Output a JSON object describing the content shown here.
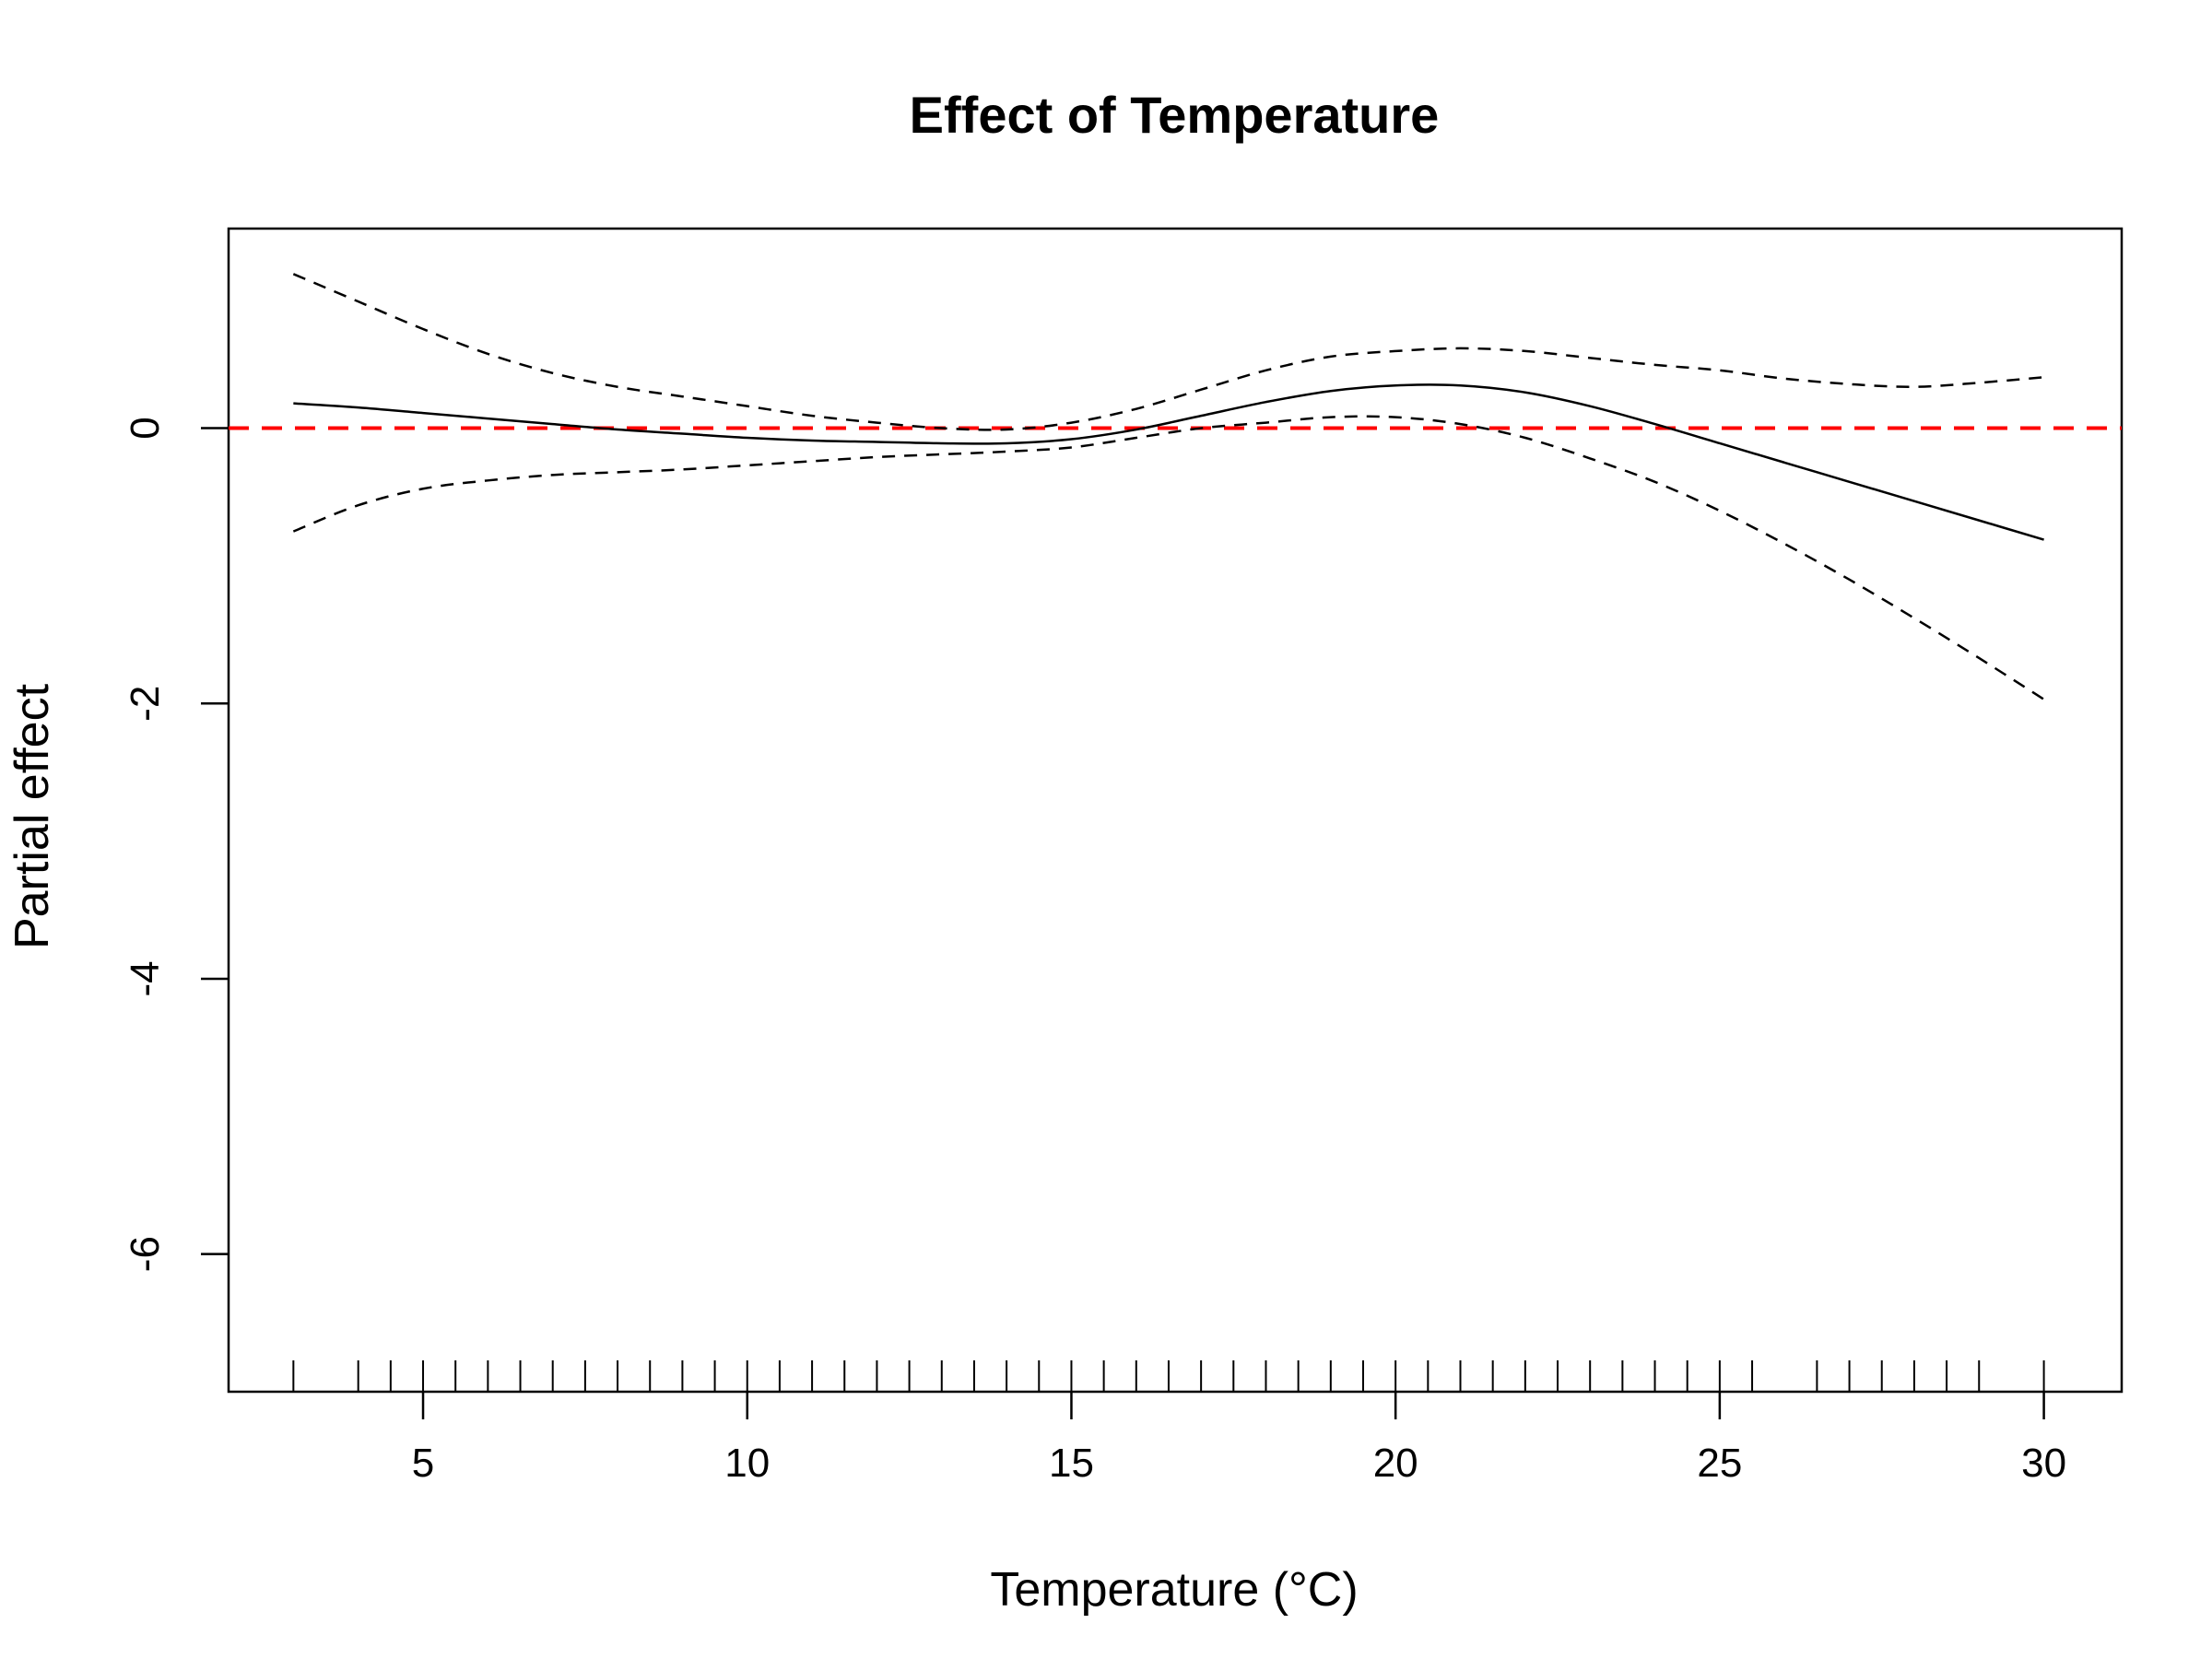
{
  "chart_data": {
    "type": "line",
    "title": "Effect of Temperature",
    "xlabel": "Temperature (°C)",
    "ylabel": "Partial effect",
    "xlim": [
      2.0,
      31.2
    ],
    "ylim": [
      -7.0,
      1.45
    ],
    "x_ticks": [
      5,
      10,
      15,
      20,
      25,
      30
    ],
    "y_ticks": [
      0,
      -2,
      -4,
      -6
    ],
    "grid": false,
    "legend": "none",
    "reference_line": {
      "y": 0,
      "style": "dashed",
      "color": "#ff0000"
    },
    "series": [
      {
        "role": "estimate",
        "style": "solid",
        "color": "#000000",
        "x": [
          3,
          4,
          5,
          6,
          7,
          8,
          9,
          10,
          11,
          12,
          13,
          14,
          15,
          16,
          17,
          18,
          19,
          20,
          21,
          22,
          23,
          24,
          25,
          26,
          27,
          28,
          29,
          30
        ],
        "y": [
          0.18,
          0.15,
          0.11,
          0.07,
          0.03,
          -0.01,
          -0.04,
          -0.07,
          -0.09,
          -0.1,
          -0.11,
          -0.11,
          -0.08,
          -0.01,
          0.09,
          0.19,
          0.27,
          0.31,
          0.31,
          0.26,
          0.16,
          0.03,
          -0.11,
          -0.25,
          -0.39,
          -0.53,
          -0.67,
          -0.81
        ]
      },
      {
        "role": "upper-confidence-band",
        "style": "dashed",
        "color": "#000000",
        "x": [
          3,
          4,
          5,
          6,
          7,
          8,
          9,
          10,
          11,
          12,
          13,
          14,
          15,
          16,
          17,
          18,
          19,
          20,
          21,
          22,
          23,
          24,
          25,
          26,
          27,
          28,
          29,
          30
        ],
        "y": [
          1.12,
          0.92,
          0.72,
          0.54,
          0.4,
          0.3,
          0.23,
          0.16,
          0.09,
          0.04,
          0.0,
          -0.01,
          0.04,
          0.14,
          0.28,
          0.42,
          0.52,
          0.56,
          0.58,
          0.56,
          0.51,
          0.46,
          0.42,
          0.36,
          0.32,
          0.3,
          0.33,
          0.37
        ]
      },
      {
        "role": "lower-confidence-band",
        "style": "dashed",
        "color": "#000000",
        "x": [
          3,
          4,
          5,
          6,
          7,
          8,
          9,
          10,
          11,
          12,
          13,
          14,
          15,
          16,
          17,
          18,
          19,
          20,
          21,
          22,
          23,
          24,
          25,
          26,
          27,
          28,
          29,
          30
        ],
        "y": [
          -0.75,
          -0.56,
          -0.44,
          -0.38,
          -0.34,
          -0.32,
          -0.3,
          -0.27,
          -0.24,
          -0.21,
          -0.19,
          -0.17,
          -0.14,
          -0.07,
          0.0,
          0.04,
          0.08,
          0.08,
          0.03,
          -0.07,
          -0.22,
          -0.39,
          -0.6,
          -0.84,
          -1.1,
          -1.38,
          -1.67,
          -1.97
        ]
      }
    ],
    "rug_x": [
      3.0,
      4.0,
      4.5,
      5.0,
      5.5,
      6.0,
      6.5,
      7.0,
      7.5,
      8.0,
      8.5,
      9.0,
      9.5,
      10.0,
      10.5,
      11.0,
      11.5,
      12.0,
      12.5,
      13.0,
      13.5,
      14.0,
      14.5,
      15.0,
      15.5,
      16.0,
      16.5,
      17.0,
      17.5,
      18.0,
      18.5,
      19.0,
      19.5,
      20.0,
      20.5,
      21.0,
      21.5,
      22.0,
      22.5,
      23.0,
      23.5,
      24.0,
      24.5,
      25.0,
      25.5,
      26.5,
      27.0,
      27.5,
      28.0,
      28.5,
      29.0,
      30.0
    ]
  }
}
